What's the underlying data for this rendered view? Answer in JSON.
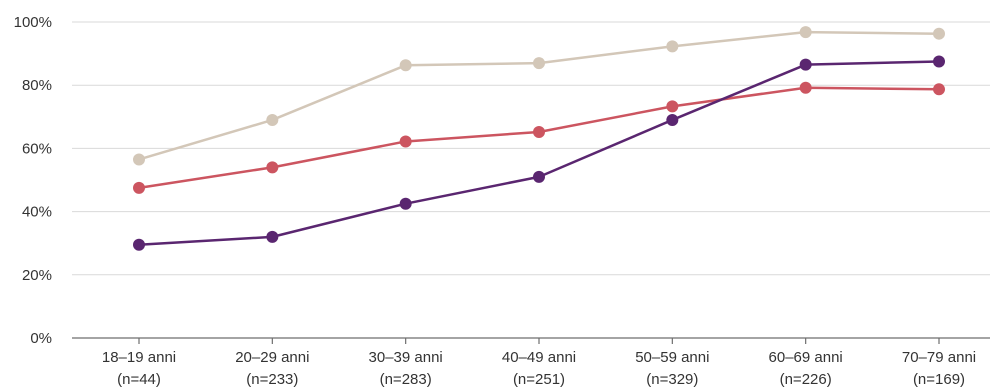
{
  "chart_data": {
    "type": "line",
    "title": "",
    "xlabel": "",
    "ylabel": "",
    "ylim": [
      0,
      100
    ],
    "yticks": [
      "0%",
      "20%",
      "40%",
      "60%",
      "80%",
      "100%"
    ],
    "ytick_values": [
      0,
      20,
      40,
      60,
      80,
      100
    ],
    "categories": [
      [
        "18–19 anni",
        "(n=44)"
      ],
      [
        "20–29 anni",
        "(n=233)"
      ],
      [
        "30–39 anni",
        "(n=283)"
      ],
      [
        "40–49 anni",
        "(n=251)"
      ],
      [
        "50–59 anni",
        "(n=329)"
      ],
      [
        "60–69 anni",
        "(n=226)"
      ],
      [
        "70–79 anni",
        "(n=169)"
      ]
    ],
    "grid": true,
    "legend": "none",
    "series": [
      {
        "color": "#d3c7b8",
        "values": [
          56.5,
          69,
          86.3,
          87,
          92.3,
          96.8,
          96.3
        ]
      },
      {
        "color": "#cc5560",
        "values": [
          47.5,
          54,
          62.2,
          65.2,
          73.3,
          79.2,
          78.7
        ]
      },
      {
        "color": "#5a2670",
        "values": [
          29.5,
          32,
          42.5,
          51,
          69,
          86.5,
          87.5
        ]
      }
    ]
  }
}
